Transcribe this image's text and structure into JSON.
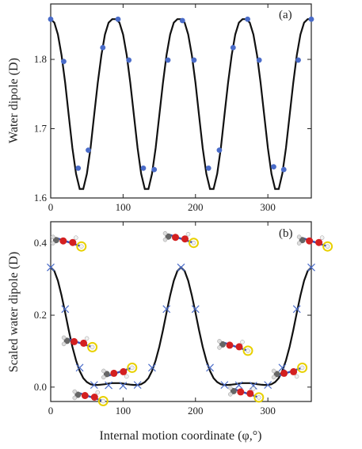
{
  "figure": {
    "xlabel": "Internal motion coordinate (φ,°)"
  },
  "chart_data": [
    {
      "type": "scatter",
      "panel_label": "(a)",
      "ylabel": "Water dipole (D)",
      "xlim": [
        0,
        360
      ],
      "ylim": [
        1.6,
        1.88
      ],
      "x_ticks": [
        "0",
        "100",
        "200",
        "300"
      ],
      "y_ticks": [
        "1.6",
        "1.7",
        "1.8"
      ],
      "grid": false,
      "series": [
        {
          "kind": "line",
          "color": "#111111",
          "x": [
            0,
            5,
            10,
            15,
            20,
            25,
            30,
            35,
            40,
            45,
            50,
            55,
            60,
            65,
            70,
            75,
            80,
            85,
            90,
            95,
            100,
            105,
            110,
            115,
            120,
            125,
            130,
            135,
            140,
            145,
            150,
            155,
            160,
            165,
            170,
            175,
            180,
            185,
            190,
            195,
            200,
            205,
            210,
            215,
            220,
            225,
            230,
            235,
            240,
            245,
            250,
            255,
            260,
            265,
            270,
            275,
            280,
            285,
            290,
            295,
            300,
            305,
            310,
            315,
            320,
            325,
            330,
            335,
            340,
            345,
            350,
            355,
            360
          ],
          "y": [
            1.858,
            1.853,
            1.836,
            1.806,
            1.766,
            1.719,
            1.672,
            1.635,
            1.613,
            1.613,
            1.635,
            1.672,
            1.719,
            1.766,
            1.806,
            1.836,
            1.853,
            1.858,
            1.858,
            1.853,
            1.836,
            1.806,
            1.766,
            1.719,
            1.672,
            1.635,
            1.613,
            1.613,
            1.635,
            1.672,
            1.719,
            1.766,
            1.806,
            1.836,
            1.853,
            1.858,
            1.858,
            1.853,
            1.836,
            1.806,
            1.766,
            1.719,
            1.672,
            1.635,
            1.613,
            1.613,
            1.635,
            1.672,
            1.719,
            1.766,
            1.806,
            1.836,
            1.853,
            1.858,
            1.858,
            1.853,
            1.836,
            1.806,
            1.766,
            1.719,
            1.672,
            1.635,
            1.613,
            1.613,
            1.635,
            1.672,
            1.719,
            1.766,
            1.806,
            1.836,
            1.853,
            1.858,
            1.858
          ]
        },
        {
          "kind": "markers",
          "marker": "circle",
          "color": "#4a6cc9",
          "x": [
            0,
            18,
            38,
            52,
            72,
            93,
            108,
            128,
            143,
            162,
            182,
            198,
            218,
            233,
            252,
            272,
            288,
            308,
            322,
            342,
            360
          ],
          "y": [
            1.858,
            1.797,
            1.643,
            1.669,
            1.817,
            1.858,
            1.799,
            1.643,
            1.641,
            1.799,
            1.856,
            1.799,
            1.643,
            1.669,
            1.817,
            1.858,
            1.799,
            1.645,
            1.641,
            1.799,
            1.858
          ]
        }
      ]
    },
    {
      "type": "scatter",
      "panel_label": "(b)",
      "ylabel": "Scaled water dipole (D)",
      "xlim": [
        0,
        360
      ],
      "ylim": [
        -0.04,
        0.46
      ],
      "x_ticks": [
        "0",
        "100",
        "200",
        "300"
      ],
      "y_ticks": [
        "0.0",
        "0.2",
        "0.4"
      ],
      "grid": false,
      "series": [
        {
          "kind": "line",
          "color": "#111111",
          "x": [
            0,
            5,
            10,
            15,
            20,
            25,
            30,
            35,
            40,
            45,
            50,
            55,
            60,
            65,
            70,
            75,
            80,
            85,
            90,
            95,
            100,
            105,
            110,
            115,
            120,
            125,
            130,
            135,
            140,
            145,
            150,
            155,
            160,
            165,
            170,
            175,
            180,
            185,
            190,
            195,
            200,
            205,
            210,
            215,
            220,
            225,
            230,
            235,
            240,
            245,
            250,
            255,
            260,
            265,
            270,
            275,
            280,
            285,
            290,
            295,
            300,
            305,
            310,
            315,
            320,
            325,
            330,
            335,
            340,
            345,
            350,
            355,
            360
          ],
          "y": [
            0.333,
            0.323,
            0.296,
            0.255,
            0.207,
            0.158,
            0.112,
            0.074,
            0.045,
            0.025,
            0.014,
            0.008,
            0.006,
            0.006,
            0.007,
            0.008,
            0.01,
            0.011,
            0.011,
            0.011,
            0.01,
            0.008,
            0.007,
            0.006,
            0.006,
            0.008,
            0.014,
            0.025,
            0.045,
            0.074,
            0.112,
            0.158,
            0.207,
            0.255,
            0.296,
            0.323,
            0.333,
            0.323,
            0.296,
            0.255,
            0.207,
            0.158,
            0.112,
            0.074,
            0.045,
            0.025,
            0.014,
            0.008,
            0.006,
            0.006,
            0.007,
            0.008,
            0.01,
            0.011,
            0.011,
            0.011,
            0.01,
            0.008,
            0.007,
            0.006,
            0.006,
            0.008,
            0.014,
            0.025,
            0.045,
            0.074,
            0.112,
            0.158,
            0.207,
            0.255,
            0.296,
            0.323,
            0.333
          ]
        },
        {
          "kind": "markers",
          "marker": "x",
          "color": "#4a6cc9",
          "x": [
            0,
            20,
            40,
            60,
            80,
            100,
            120,
            140,
            160,
            180,
            200,
            220,
            240,
            260,
            280,
            300,
            320,
            340,
            360
          ],
          "y": [
            0.333,
            0.217,
            0.054,
            0.006,
            0.005,
            0.004,
            0.006,
            0.054,
            0.217,
            0.333,
            0.217,
            0.054,
            0.006,
            0.005,
            0.004,
            0.006,
            0.054,
            0.217,
            0.333
          ]
        }
      ]
    }
  ],
  "molecule_insets": [
    {
      "x": 25,
      "y": 0.4,
      "flip": false
    },
    {
      "x": 180,
      "y": 0.41,
      "flip": false
    },
    {
      "x": 365,
      "y": 0.4,
      "flip": false
    },
    {
      "x": 40,
      "y": 0.12,
      "flip": false
    },
    {
      "x": 95,
      "y": 0.045,
      "flip": true
    },
    {
      "x": 255,
      "y": 0.11,
      "flip": false
    },
    {
      "x": 330,
      "y": 0.045,
      "flip": true
    },
    {
      "x": 55,
      "y": -0.03,
      "flip": false
    },
    {
      "x": 270,
      "y": -0.02,
      "flip": false
    }
  ]
}
